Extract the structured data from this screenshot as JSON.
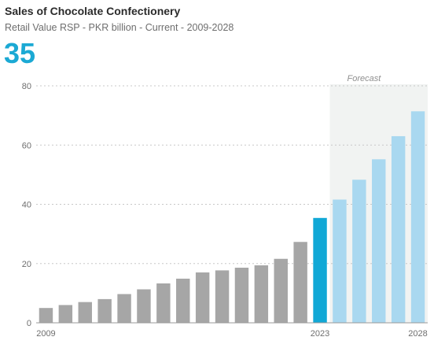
{
  "header": {
    "title": "Sales of Chocolate Confectionery",
    "subtitle": "Retail Value RSP - PKR billion - Current - 2009-2028",
    "headline_value": "35"
  },
  "colors": {
    "historic": "#a6a6a6",
    "current": "#11a8d6",
    "forecast": "#a9d8f0",
    "forecast_bg": "#f1f3f2",
    "gridline": "#c8c8c8",
    "axis": "#9a9a9a"
  },
  "chart_data": {
    "type": "bar",
    "title": "Sales of Chocolate Confectionery",
    "subtitle": "Retail Value RSP - PKR billion - Current - 2009-2028",
    "categories": [
      "2009",
      "2010",
      "2011",
      "2012",
      "2013",
      "2014",
      "2015",
      "2016",
      "2017",
      "2018",
      "2019",
      "2020",
      "2021",
      "2022",
      "2023",
      "2024",
      "2025",
      "2026",
      "2027",
      "2028"
    ],
    "values": [
      5,
      6,
      7,
      8,
      9.7,
      11.3,
      13.3,
      14.9,
      17,
      17.7,
      18.6,
      19.4,
      21.6,
      27.3,
      35.4,
      41.6,
      48.3,
      55.2,
      63,
      71.4
    ],
    "x_tick_labels": [
      {
        "category": "2009",
        "label": "2009"
      },
      {
        "category": "2023",
        "label": "2023",
        "highlight": true
      },
      {
        "category": "2028",
        "label": "2028"
      }
    ],
    "current_year": "2023",
    "forecast_start": "2024",
    "forecast_label": "Forecast",
    "ylim": [
      0,
      80
    ],
    "yticks": [
      0,
      20,
      40,
      60,
      80
    ],
    "grid": true,
    "xlabel": "",
    "ylabel": ""
  }
}
